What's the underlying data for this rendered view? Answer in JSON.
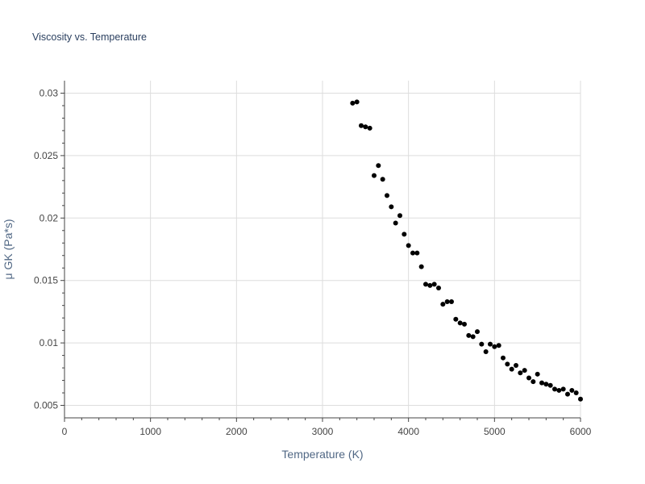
{
  "chart_data": {
    "type": "scatter",
    "title": "Viscosity vs. Temperature",
    "xlabel": "Temperature (K)",
    "ylabel": "μ GK (Pa*s)",
    "xlim": [
      0,
      6000
    ],
    "ylim": [
      0.004,
      0.031
    ],
    "xticks": [
      0,
      1000,
      2000,
      3000,
      4000,
      5000,
      6000
    ],
    "xtick_labels": [
      "0",
      "1000",
      "2000",
      "3000",
      "4000",
      "5000",
      "6000"
    ],
    "yticks": [
      0.005,
      0.01,
      0.015,
      0.02,
      0.025,
      0.03
    ],
    "ytick_labels": [
      "0.005",
      "0.01",
      "0.015",
      "0.02",
      "0.025",
      "0.03"
    ],
    "grid": true,
    "marker_color": "#000000",
    "series": [
      {
        "x": [
          3350,
          3400,
          3450,
          3500,
          3550,
          3600,
          3650,
          3700,
          3750,
          3800,
          3850,
          3900,
          3950,
          4000,
          4050,
          4100,
          4150,
          4200,
          4250,
          4300,
          4350,
          4400,
          4450,
          4500,
          4550,
          4600,
          4650,
          4700,
          4750,
          4800,
          4850,
          4900,
          4950,
          5000,
          5050,
          5100,
          5150,
          5200,
          5250,
          5300,
          5350,
          5400,
          5450,
          5500,
          5550,
          5600,
          5650,
          5700,
          5750,
          5800,
          5850,
          5900,
          5950,
          6000
        ],
        "y": [
          0.0292,
          0.0293,
          0.0274,
          0.0273,
          0.0272,
          0.0234,
          0.0242,
          0.0231,
          0.0218,
          0.0209,
          0.0196,
          0.0202,
          0.0187,
          0.0178,
          0.0172,
          0.0172,
          0.0161,
          0.0147,
          0.0146,
          0.0147,
          0.0144,
          0.0131,
          0.0133,
          0.0133,
          0.0119,
          0.0116,
          0.0115,
          0.0106,
          0.0105,
          0.0109,
          0.0099,
          0.0093,
          0.0099,
          0.0097,
          0.0098,
          0.0088,
          0.0083,
          0.0079,
          0.0082,
          0.0076,
          0.0078,
          0.0072,
          0.0069,
          0.0075,
          0.0068,
          0.0067,
          0.0066,
          0.0063,
          0.0062,
          0.0063,
          0.0059,
          0.0062,
          0.006,
          0.0055
        ]
      }
    ]
  }
}
